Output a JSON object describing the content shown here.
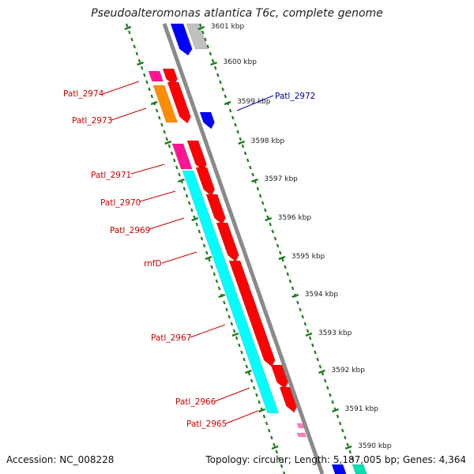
{
  "title": "Pseudoalteromonas atlantica T6c, complete genome",
  "accession": "Accession: NC_008228",
  "topology": "Topology: circular; Length: 5,187,005 bp; Genes: 4,364",
  "colors": {
    "backbone": "#888888",
    "ruler": "#1e7b1e",
    "red": "#ff0000",
    "cyan": "#00ffff",
    "magenta": "#ff1493",
    "orange": "#ff8c00",
    "blue": "#0000ff",
    "gray": "#c0c0c0",
    "pink": "#ff7fc0",
    "teal": "#00e0b0",
    "label_red": "#cc0000",
    "label_blue": "#000099"
  },
  "kbp_labels": [
    {
      "text": "3601 kbp"
    },
    {
      "text": "3600 kbp"
    },
    {
      "text": "3599 kbp"
    },
    {
      "text": "3598 kbp"
    },
    {
      "text": "3597 kbp"
    },
    {
      "text": "3596 kbp"
    },
    {
      "text": "3595 kbp"
    },
    {
      "text": "3594 kbp"
    },
    {
      "text": "3593 kbp"
    },
    {
      "text": "3592 kbp"
    },
    {
      "text": "3591 kbp"
    },
    {
      "text": "3590 kbp"
    }
  ],
  "gene_labels": [
    {
      "text": "Patl_2974",
      "color": "red"
    },
    {
      "text": "Patl_2973",
      "color": "red"
    },
    {
      "text": "Patl_2972",
      "color": "blue"
    },
    {
      "text": "Patl_2971",
      "color": "red"
    },
    {
      "text": "Patl_2970",
      "color": "red"
    },
    {
      "text": "Patl_2969",
      "color": "red"
    },
    {
      "text": "rnfD",
      "color": "red"
    },
    {
      "text": "Patl_2967",
      "color": "red"
    },
    {
      "text": "Patl_2966",
      "color": "red"
    },
    {
      "text": "Patl_2965",
      "color": "red"
    }
  ]
}
